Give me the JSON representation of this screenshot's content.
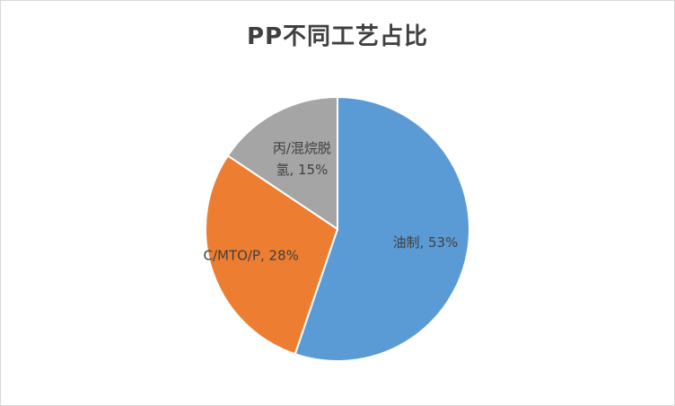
{
  "chart_data": {
    "type": "pie",
    "title": "PP不同工艺占比",
    "slices": [
      {
        "name": "油制",
        "value": 53,
        "label": "油制, 53%",
        "color": "#5B9BD5"
      },
      {
        "name": "C/MTO/P",
        "value": 28,
        "label": "C/MTO/P, 28%",
        "color": "#ED7D31"
      },
      {
        "name": "丙/混烷脱氢",
        "value": 15,
        "label_lines": [
          "丙/混烷脱",
          "氢, 15%"
        ],
        "color": "#A5A5A5"
      }
    ],
    "legend": "none"
  }
}
